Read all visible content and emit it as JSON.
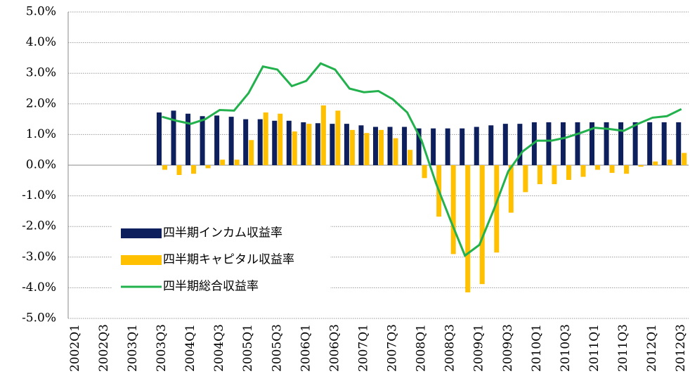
{
  "chart_data": {
    "type": "bar_line",
    "categories": [
      "2002Q1",
      null,
      "2002Q3",
      null,
      "2003Q1",
      null,
      "2003Q3",
      null,
      "2004Q1",
      null,
      "2004Q3",
      null,
      "2005Q1",
      null,
      "2005Q3",
      null,
      "2006Q1",
      null,
      "2006Q3",
      null,
      "2007Q1",
      null,
      "2007Q3",
      null,
      "2008Q1",
      null,
      "2008Q3",
      null,
      "2009Q1",
      null,
      "2009Q3",
      null,
      "2010Q1",
      null,
      "2010Q3",
      null,
      "2011Q1",
      null,
      "2011Q3",
      null,
      "2012Q1",
      null,
      "2012Q3"
    ],
    "series": [
      {
        "name": "四半期インカム収益率",
        "type": "bar",
        "color": "#0d1f5c",
        "values": [
          null,
          null,
          null,
          null,
          null,
          null,
          1.72,
          1.78,
          1.68,
          1.6,
          1.62,
          1.58,
          1.5,
          1.5,
          1.45,
          1.45,
          1.4,
          1.37,
          1.35,
          1.35,
          1.3,
          1.25,
          1.25,
          1.25,
          1.2,
          1.2,
          1.2,
          1.2,
          1.25,
          1.3,
          1.35,
          1.35,
          1.4,
          1.4,
          1.4,
          1.4,
          1.4,
          1.4,
          1.4,
          1.4,
          1.4,
          1.4,
          1.4
        ]
      },
      {
        "name": "四半期キャピタル収益率",
        "type": "bar",
        "color": "#ffc000",
        "values": [
          null,
          null,
          null,
          null,
          null,
          null,
          -0.15,
          -0.32,
          -0.28,
          -0.1,
          0.18,
          0.18,
          0.82,
          1.72,
          1.68,
          1.1,
          1.35,
          1.95,
          1.78,
          1.15,
          1.05,
          1.15,
          0.88,
          0.5,
          -0.42,
          -1.68,
          -2.9,
          -4.15,
          -3.88,
          -2.85,
          -1.55,
          -0.88,
          -0.62,
          -0.62,
          -0.48,
          -0.38,
          -0.15,
          -0.25,
          -0.28,
          -0.05,
          0.12,
          0.18,
          0.4
        ]
      },
      {
        "name": "四半期総合収益率",
        "type": "line",
        "color": "#22b14c",
        "values": [
          null,
          null,
          null,
          null,
          null,
          null,
          1.58,
          1.45,
          1.35,
          1.5,
          1.8,
          1.78,
          2.35,
          3.22,
          3.12,
          2.58,
          2.75,
          3.32,
          3.12,
          2.5,
          2.38,
          2.42,
          2.15,
          1.72,
          0.8,
          -0.6,
          -1.8,
          -2.95,
          -2.6,
          -1.45,
          -0.2,
          0.45,
          0.8,
          0.8,
          0.9,
          1.05,
          1.22,
          1.18,
          1.12,
          1.35,
          1.55,
          1.6,
          1.83
        ]
      }
    ],
    "ylim": [
      -5,
      5
    ],
    "yticks": [
      {
        "value": -5,
        "label": "-5.0%"
      },
      {
        "value": -4,
        "label": "-4.0%"
      },
      {
        "value": -3,
        "label": "-3.0%"
      },
      {
        "value": -2,
        "label": "-2.0%"
      },
      {
        "value": -1,
        "label": "-1.0%"
      },
      {
        "value": 0,
        "label": "0.0%"
      },
      {
        "value": 1,
        "label": "1.0%"
      },
      {
        "value": 2,
        "label": "2.0%"
      },
      {
        "value": 3,
        "label": "3.0%"
      },
      {
        "value": 4,
        "label": "4.0%"
      },
      {
        "value": 5,
        "label": "5.0%"
      }
    ],
    "grid": true,
    "legend": "lower-left"
  }
}
